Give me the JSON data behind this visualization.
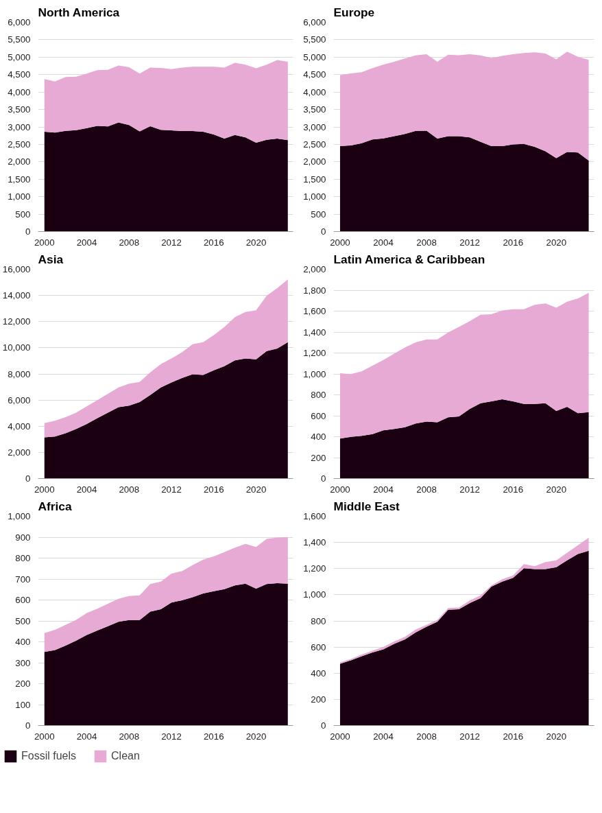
{
  "chart_data": [
    {
      "type": "area",
      "title": "North America",
      "stacked": true,
      "x": [
        2000,
        2001,
        2002,
        2003,
        2004,
        2005,
        2006,
        2007,
        2008,
        2009,
        2010,
        2011,
        2012,
        2013,
        2014,
        2015,
        2016,
        2017,
        2018,
        2019,
        2020,
        2021,
        2022,
        2023
      ],
      "xlim": [
        1999.4,
        2023.5
      ],
      "xticks": [
        2000,
        2004,
        2008,
        2012,
        2016,
        2020
      ],
      "ylim": [
        0,
        6000
      ],
      "yticks": [
        0,
        {
          "value": 500,
          "label": "500"
        },
        {
          "value": 1000,
          "label": "1,000"
        },
        {
          "value": 1500,
          "label": "1,500"
        },
        {
          "value": 2000,
          "label": "2,000"
        },
        {
          "value": 2500,
          "label": "2,500"
        },
        {
          "value": 3000,
          "label": "3,000"
        },
        {
          "value": 3500,
          "label": "3,500"
        },
        {
          "value": 4000,
          "label": "4,000"
        },
        {
          "value": 4500,
          "label": "4,500"
        },
        {
          "value": 5000,
          "label": "5,000"
        },
        {
          "value": 5500,
          "label": "5,500"
        },
        {
          "value": 6000,
          "label": "6,000"
        }
      ],
      "grid": "y",
      "series": [
        {
          "color": "#1a0010",
          "values": [
            2860,
            2840,
            2885,
            2905,
            2965,
            3030,
            3015,
            3130,
            3055,
            2870,
            3020,
            2915,
            2900,
            2880,
            2880,
            2860,
            2785,
            2665,
            2770,
            2700,
            2550,
            2630,
            2665,
            2620
          ]
        },
        {
          "color": "#e6aad5",
          "values": [
            1510,
            1465,
            1545,
            1535,
            1565,
            1600,
            1625,
            1630,
            1655,
            1660,
            1680,
            1775,
            1755,
            1820,
            1845,
            1865,
            1940,
            2035,
            2070,
            2085,
            2130,
            2155,
            2255,
            2250
          ]
        }
      ]
    },
    {
      "type": "area",
      "title": "Europe",
      "stacked": true,
      "x": [
        2000,
        2001,
        2002,
        2003,
        2004,
        2005,
        2006,
        2007,
        2008,
        2009,
        2010,
        2011,
        2012,
        2013,
        2014,
        2015,
        2016,
        2017,
        2018,
        2019,
        2020,
        2021,
        2022,
        2023
      ],
      "xlim": [
        1999.4,
        2023.5
      ],
      "xticks": [
        2000,
        2004,
        2008,
        2012,
        2016,
        2020
      ],
      "ylim": [
        0,
        6000
      ],
      "yticks": [
        0,
        {
          "value": 500,
          "label": "500"
        },
        {
          "value": 1000,
          "label": "1,000"
        },
        {
          "value": 1500,
          "label": "1,500"
        },
        {
          "value": 2000,
          "label": "2,000"
        },
        {
          "value": 2500,
          "label": "2,500"
        },
        {
          "value": 3000,
          "label": "3,000"
        },
        {
          "value": 3500,
          "label": "3,500"
        },
        {
          "value": 4000,
          "label": "4,000"
        },
        {
          "value": 4500,
          "label": "4,500"
        },
        {
          "value": 5000,
          "label": "5,000"
        },
        {
          "value": 5500,
          "label": "5,500"
        },
        {
          "value": 6000,
          "label": "6,000"
        }
      ],
      "grid": "y",
      "series": [
        {
          "color": "#1a0010",
          "values": [
            2450,
            2470,
            2535,
            2640,
            2670,
            2735,
            2800,
            2885,
            2890,
            2665,
            2735,
            2735,
            2700,
            2570,
            2450,
            2450,
            2500,
            2515,
            2430,
            2300,
            2105,
            2280,
            2265,
            2035
          ]
        },
        {
          "color": "#e6aad5",
          "values": [
            2035,
            2065,
            2035,
            2045,
            2115,
            2135,
            2160,
            2165,
            2195,
            2205,
            2335,
            2320,
            2385,
            2480,
            2525,
            2585,
            2585,
            2605,
            2710,
            2805,
            2835,
            2880,
            2745,
            2890
          ]
        }
      ]
    },
    {
      "type": "area",
      "title": "Asia",
      "stacked": true,
      "x": [
        2000,
        2001,
        2002,
        2003,
        2004,
        2005,
        2006,
        2007,
        2008,
        2009,
        2010,
        2011,
        2012,
        2013,
        2014,
        2015,
        2016,
        2017,
        2018,
        2019,
        2020,
        2021,
        2022,
        2023
      ],
      "xlim": [
        1999.4,
        2023.5
      ],
      "xticks": [
        2000,
        2004,
        2008,
        2012,
        2016,
        2020
      ],
      "ylim": [
        0,
        16000
      ],
      "yticks": [
        0,
        {
          "value": 2000,
          "label": "2,000"
        },
        {
          "value": 4000,
          "label": "4,000"
        },
        {
          "value": 6000,
          "label": "6,000"
        },
        {
          "value": 8000,
          "label": "8,000"
        },
        {
          "value": 10000,
          "label": "10,000"
        },
        {
          "value": 12000,
          "label": "12,000"
        },
        {
          "value": 14000,
          "label": "14,000"
        },
        {
          "value": 16000,
          "label": "16,000"
        }
      ],
      "grid": "y",
      "series": [
        {
          "color": "#1a0010",
          "values": [
            3150,
            3210,
            3460,
            3790,
            4170,
            4615,
            5040,
            5460,
            5575,
            5850,
            6385,
            6960,
            7345,
            7690,
            7980,
            7925,
            8270,
            8595,
            9040,
            9175,
            9115,
            9750,
            9940,
            10425
          ]
        },
        {
          "color": "#e6aad5",
          "values": [
            1080,
            1215,
            1230,
            1250,
            1350,
            1385,
            1440,
            1500,
            1675,
            1535,
            1730,
            1790,
            1830,
            1965,
            2290,
            2500,
            2690,
            2980,
            3305,
            3555,
            3750,
            4230,
            4620,
            4805
          ]
        }
      ]
    },
    {
      "type": "area",
      "title": "Latin America & Caribbean",
      "stacked": true,
      "x": [
        2000,
        2001,
        2002,
        2003,
        2004,
        2005,
        2006,
        2007,
        2008,
        2009,
        2010,
        2011,
        2012,
        2013,
        2014,
        2015,
        2016,
        2017,
        2018,
        2019,
        2020,
        2021,
        2022,
        2023
      ],
      "xlim": [
        1999.4,
        2023.5
      ],
      "xticks": [
        2000,
        2004,
        2008,
        2012,
        2016,
        2020
      ],
      "ylim": [
        0,
        2000
      ],
      "yticks": [
        0,
        200,
        400,
        600,
        800,
        {
          "value": 1000,
          "label": "1,000"
        },
        {
          "value": 1200,
          "label": "1,200"
        },
        {
          "value": 1400,
          "label": "1,400"
        },
        {
          "value": 1600,
          "label": "1,600"
        },
        {
          "value": 1800,
          "label": "1,800"
        },
        {
          "value": 2000,
          "label": "2,000"
        }
      ],
      "grid": "y",
      "series": [
        {
          "color": "#1a0010",
          "values": [
            382,
            398,
            408,
            425,
            461,
            473,
            490,
            526,
            545,
            538,
            586,
            593,
            665,
            720,
            737,
            758,
            737,
            713,
            713,
            720,
            646,
            686,
            624,
            634
          ]
        },
        {
          "color": "#e6aad5",
          "values": [
            624,
            600,
            617,
            653,
            672,
            720,
            763,
            775,
            785,
            792,
            811,
            857,
            840,
            845,
            833,
            848,
            881,
            905,
            948,
            953,
            986,
            1004,
            1097,
            1142
          ]
        }
      ]
    },
    {
      "type": "area",
      "title": "Africa",
      "stacked": true,
      "legend": "bottom",
      "x": [
        2000,
        2001,
        2002,
        2003,
        2004,
        2005,
        2006,
        2007,
        2008,
        2009,
        2010,
        2011,
        2012,
        2013,
        2014,
        2015,
        2016,
        2017,
        2018,
        2019,
        2020,
        2021,
        2022,
        2023
      ],
      "xlim": [
        1999.4,
        2023.5
      ],
      "xticks": [
        2000,
        2004,
        2008,
        2012,
        2016,
        2020
      ],
      "ylim": [
        0,
        1000
      ],
      "yticks": [
        0,
        100,
        200,
        300,
        400,
        500,
        600,
        700,
        800,
        900,
        {
          "value": 1000,
          "label": "1,000"
        }
      ],
      "grid": "y",
      "series": [
        {
          "name": "Fossil fuels",
          "color": "#1a0010",
          "values": [
            352,
            361,
            382,
            406,
            433,
            454,
            475,
            496,
            504,
            504,
            544,
            556,
            588,
            598,
            613,
            631,
            642,
            652,
            670,
            678,
            654,
            676,
            680,
            678
          ]
        },
        {
          "name": "Clean",
          "color": "#e6aad5",
          "values": [
            90,
            96,
            99,
            99,
            105,
            104,
            107,
            110,
            115,
            118,
            132,
            132,
            138,
            140,
            153,
            162,
            166,
            177,
            180,
            190,
            199,
            216,
            218,
            223
          ]
        }
      ]
    },
    {
      "type": "area",
      "title": "Middle East",
      "stacked": true,
      "x": [
        2000,
        2001,
        2002,
        2003,
        2004,
        2005,
        2006,
        2007,
        2008,
        2009,
        2010,
        2011,
        2012,
        2013,
        2014,
        2015,
        2016,
        2017,
        2018,
        2019,
        2020,
        2021,
        2022,
        2023
      ],
      "xlim": [
        1999.4,
        2023.5
      ],
      "xticks": [
        2000,
        2004,
        2008,
        2012,
        2016,
        2020
      ],
      "ylim": [
        0,
        1600
      ],
      "yticks": [
        0,
        200,
        400,
        600,
        800,
        {
          "value": 1000,
          "label": "1,000"
        },
        {
          "value": 1200,
          "label": "1,200"
        },
        {
          "value": 1400,
          "label": "1,400"
        },
        {
          "value": 1600,
          "label": "1,600"
        }
      ],
      "grid": "y",
      "series": [
        {
          "color": "#1a0010",
          "values": [
            472,
            499,
            530,
            559,
            582,
            624,
            659,
            712,
            755,
            793,
            885,
            889,
            937,
            975,
            1062,
            1100,
            1129,
            1202,
            1196,
            1196,
            1210,
            1263,
            1311,
            1336
          ]
        },
        {
          "color": "#e6aad5",
          "values": [
            10,
            10,
            13,
            13,
            19,
            19,
            19,
            23,
            15,
            15,
            14,
            13,
            19,
            20,
            9,
            19,
            19,
            32,
            23,
            54,
            53,
            58,
            67,
            100
          ]
        }
      ]
    }
  ]
}
